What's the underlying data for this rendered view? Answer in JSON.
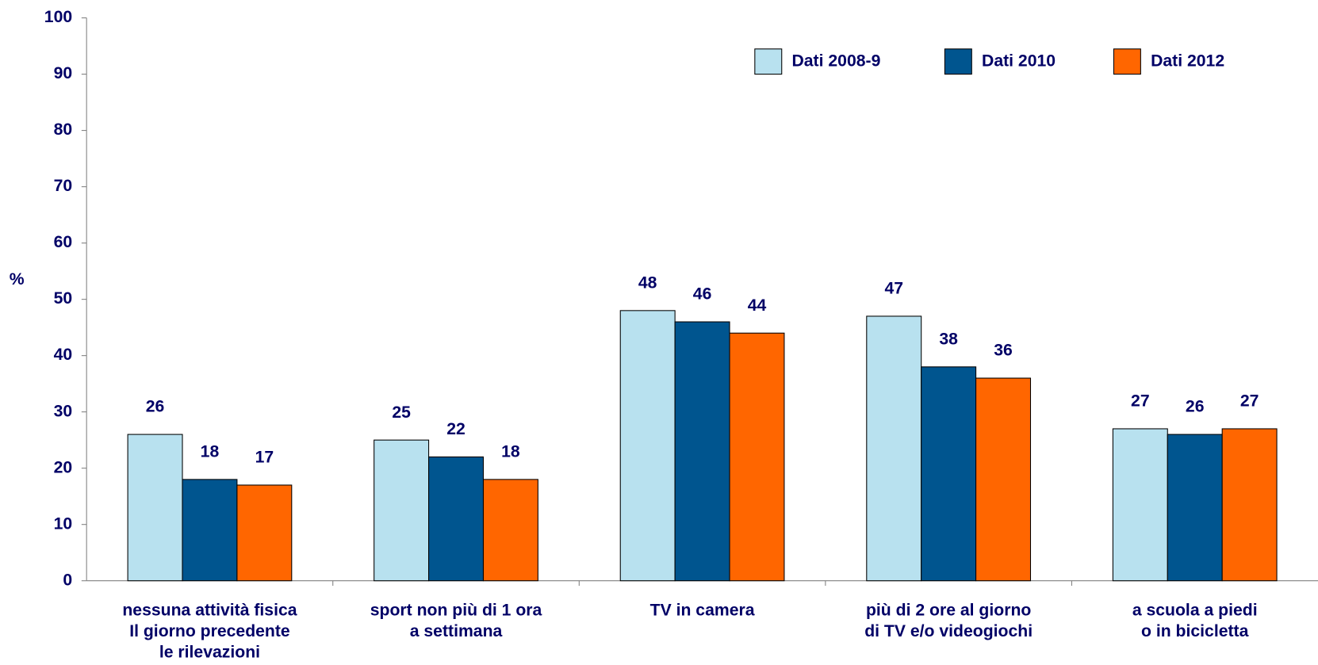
{
  "chart_data": {
    "type": "bar",
    "y_label": "%",
    "categories": [
      [
        "nessuna attività fisica",
        "Il giorno precedente",
        "le rilevazioni"
      ],
      [
        "sport non più di 1 ora",
        "a settimana"
      ],
      [
        "TV in camera"
      ],
      [
        "più di 2 ore al giorno",
        "di TV e/o videogiochi"
      ],
      [
        "a scuola a piedi",
        "o in bicicletta"
      ]
    ],
    "series": [
      {
        "name": "Dati 2008-9",
        "color": "#b8e1ef",
        "values": [
          26,
          25,
          48,
          47,
          27
        ]
      },
      {
        "name": "Dati 2010",
        "color": "#00558f",
        "values": [
          18,
          22,
          46,
          38,
          26
        ]
      },
      {
        "name": "Dati 2012",
        "color": "#ff6600",
        "values": [
          17,
          18,
          44,
          36,
          27
        ]
      }
    ],
    "ylim": [
      0,
      100
    ],
    "yticks": [
      0,
      10,
      20,
      30,
      40,
      50,
      60,
      70,
      80,
      90,
      100
    ],
    "legend": "top-right"
  }
}
